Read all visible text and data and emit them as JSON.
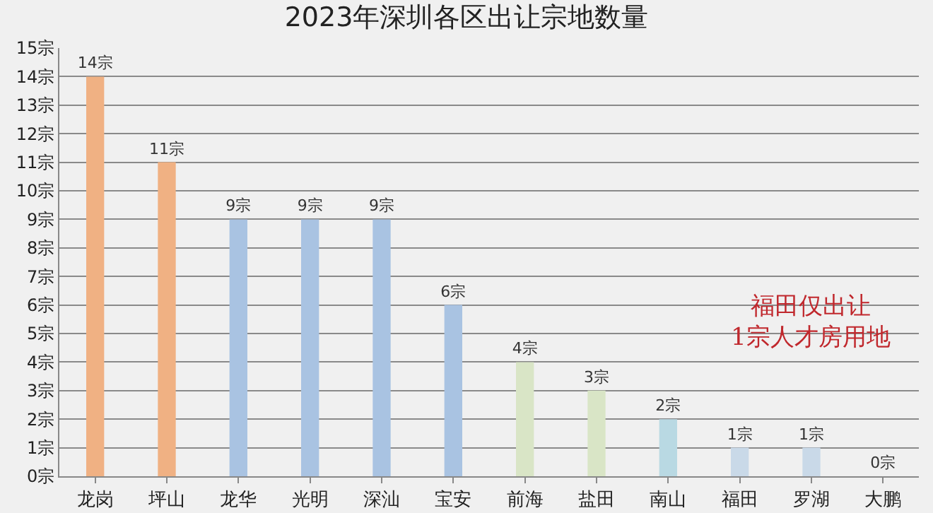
{
  "chart_data": {
    "type": "bar",
    "title": "2023年深圳各区出让宗地数量",
    "categories": [
      "龙岗",
      "坪山",
      "龙华",
      "光明",
      "深汕",
      "宝安",
      "前海",
      "盐田",
      "南山",
      "福田",
      "罗湖",
      "大鹏"
    ],
    "values": [
      14,
      11,
      9,
      9,
      9,
      6,
      4,
      3,
      2,
      1,
      1,
      0
    ],
    "value_labels": [
      "14宗",
      "11宗",
      "9宗",
      "9宗",
      "9宗",
      "6宗",
      "4宗",
      "3宗",
      "2宗",
      "1宗",
      "1宗",
      "0宗"
    ],
    "colors": [
      "#f0b183",
      "#f0b183",
      "#a9c3e2",
      "#a9c3e2",
      "#a9c3e2",
      "#a9c3e2",
      "#d9e5c6",
      "#d9e5c6",
      "#b9d9e3",
      "#c9d9e8",
      "#c9d9e8",
      "#c9d9e8"
    ],
    "ylim": [
      0,
      15
    ],
    "yticks": [
      {
        "value": 0,
        "label": "0宗"
      },
      {
        "value": 1,
        "label": "1宗"
      },
      {
        "value": 2,
        "label": "2宗"
      },
      {
        "value": 3,
        "label": "3宗"
      },
      {
        "value": 4,
        "label": "4宗"
      },
      {
        "value": 5,
        "label": "5宗"
      },
      {
        "value": 6,
        "label": "6宗"
      },
      {
        "value": 7,
        "label": "7宗"
      },
      {
        "value": 8,
        "label": "8宗"
      },
      {
        "value": 9,
        "label": "9宗"
      },
      {
        "value": 10,
        "label": "10宗"
      },
      {
        "value": 11,
        "label": "11宗"
      },
      {
        "value": 12,
        "label": "12宗"
      },
      {
        "value": 13,
        "label": "13宗"
      },
      {
        "value": 14,
        "label": "14宗"
      },
      {
        "value": 15,
        "label": "15宗"
      }
    ],
    "grid": "y",
    "annotations": [
      "福田仅出让\n1宗人才房用地"
    ]
  }
}
